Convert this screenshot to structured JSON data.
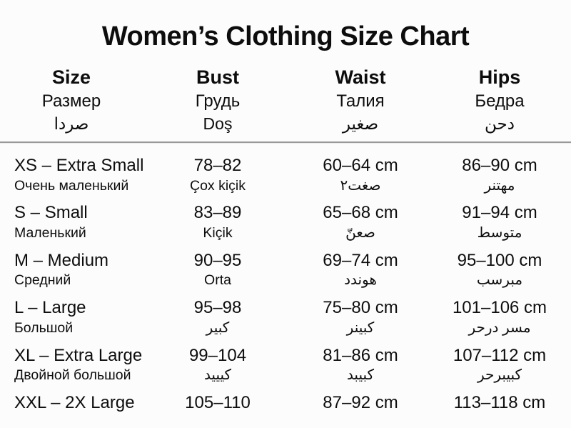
{
  "page": {
    "title": "Women’s Clothing Size Chart"
  },
  "table": {
    "columns": [
      {
        "id": "size",
        "en": "Size",
        "ru": "Размер",
        "ar": "صردا"
      },
      {
        "id": "bust",
        "en": "Bust",
        "ru": "Грудь",
        "ar": "Doş"
      },
      {
        "id": "waist",
        "en": "Waist",
        "ru": "Талия",
        "ar": "صغير"
      },
      {
        "id": "hips",
        "en": "Hips",
        "ru": "Бедра",
        "ar": "دحن"
      }
    ],
    "rows": [
      {
        "size": {
          "main": "XS – Extra Small",
          "sub": "Очень маленький"
        },
        "bust": {
          "main": "78–82",
          "sub": "Çox kiçik"
        },
        "waist": {
          "main": "60–64 cm",
          "sub": "صغت٢"
        },
        "hips": {
          "main": "86–90 cm",
          "sub": "مهتنر"
        }
      },
      {
        "size": {
          "main": "S – Small",
          "sub": "Маленький"
        },
        "bust": {
          "main": "83–89",
          "sub": "Kiçik"
        },
        "waist": {
          "main": "65–68 cm",
          "sub": "صعنّ"
        },
        "hips": {
          "main": "91–94 cm",
          "sub": "متوسط"
        }
      },
      {
        "size": {
          "main": "M – Medium",
          "sub": "Средний"
        },
        "bust": {
          "main": "90–95",
          "sub": "Orta"
        },
        "waist": {
          "main": "69–74 cm",
          "sub": "هوندد"
        },
        "hips": {
          "main": "95–100 cm",
          "sub": "مبرسب"
        }
      },
      {
        "size": {
          "main": "L – Large",
          "sub": "Большой"
        },
        "bust": {
          "main": "95–98",
          "sub": "كبير"
        },
        "waist": {
          "main": "75–80 cm",
          "sub": "كبينر"
        },
        "hips": {
          "main": "101–106 cm",
          "sub": "مسر درحر"
        }
      },
      {
        "size": {
          "main": "XL – Extra Large",
          "sub": "Двойной большой"
        },
        "bust": {
          "main": "99–104",
          "sub": "كيييد"
        },
        "waist": {
          "main": "81–86 cm",
          "sub": "كبيبد"
        },
        "hips": {
          "main": "107–112 cm",
          "sub": "كبيبرحر"
        }
      },
      {
        "size": {
          "main": "XXL – 2X Large",
          "sub": ""
        },
        "bust": {
          "main": "105–110",
          "sub": ""
        },
        "waist": {
          "main": "87–92 cm",
          "sub": ""
        },
        "hips": {
          "main": "113–118 cm",
          "sub": ""
        }
      }
    ]
  },
  "colors": {
    "background": "#fcfcfc",
    "text": "#0d0d0d",
    "divider": "#9a9a9a"
  }
}
